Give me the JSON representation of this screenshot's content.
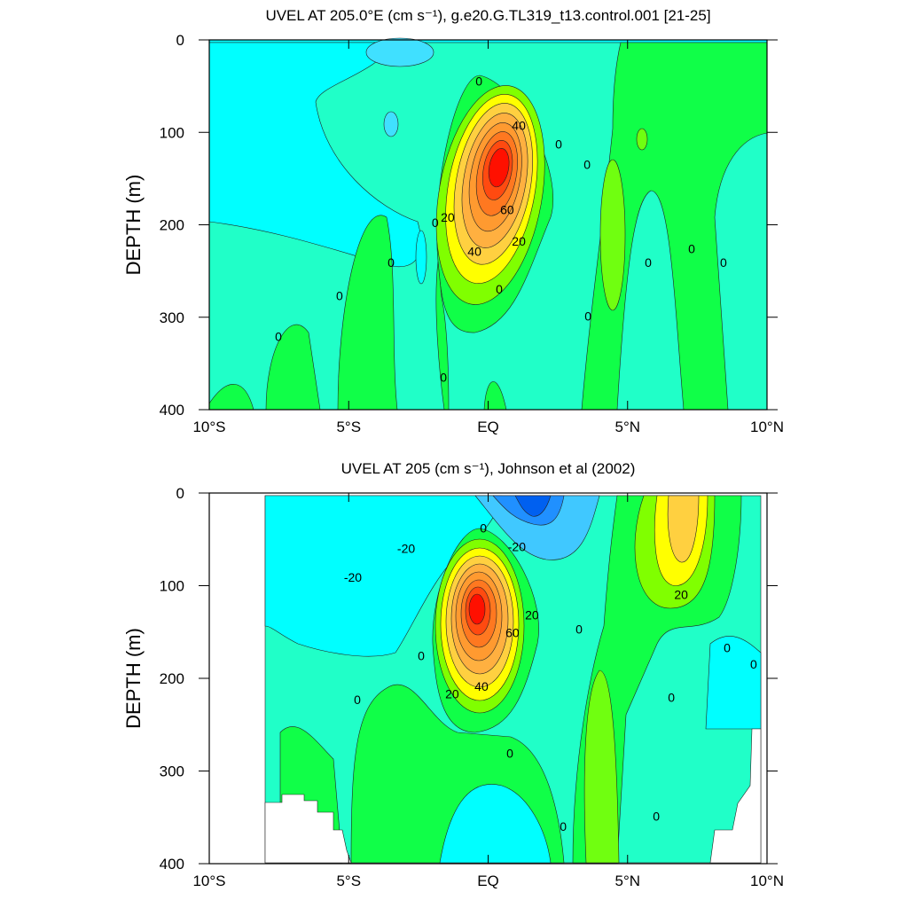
{
  "chart_data": [
    {
      "type": "contour",
      "title": "UVEL AT 205.0°E (cm s⁻¹), g.e20.G.TL319_t13.control.001 [21-25]",
      "ylabel": "DEPTH (m)",
      "xlim": [
        -10,
        10
      ],
      "ylim": [
        0,
        400
      ],
      "y_inverted": true,
      "xticks": [
        {
          "value": -10,
          "label": "10°S"
        },
        {
          "value": -5,
          "label": "5°S"
        },
        {
          "value": 0,
          "label": "EQ"
        },
        {
          "value": 5,
          "label": "5°N"
        },
        {
          "value": 10,
          "label": "10°N"
        }
      ],
      "yticks": [
        0,
        100,
        200,
        300,
        400
      ],
      "contour_labels": [
        {
          "x": -0.33,
          "y": 46,
          "level": 0
        },
        {
          "x": 1.1,
          "y": 94,
          "level": 40
        },
        {
          "x": 2.53,
          "y": 114,
          "level": 0
        },
        {
          "x": 3.55,
          "y": 136,
          "level": 0
        },
        {
          "x": 0.68,
          "y": 185,
          "level": 60
        },
        {
          "x": -1.45,
          "y": 193,
          "level": 20
        },
        {
          "x": -1.9,
          "y": 199,
          "level": 0
        },
        {
          "x": 1.1,
          "y": 219,
          "level": 20
        },
        {
          "x": -0.49,
          "y": 230,
          "level": 40
        },
        {
          "x": -3.48,
          "y": 242,
          "level": 0
        },
        {
          "x": 5.74,
          "y": 242,
          "level": 0
        },
        {
          "x": 7.3,
          "y": 227,
          "level": 0
        },
        {
          "x": 8.44,
          "y": 242,
          "level": 0
        },
        {
          "x": 0.4,
          "y": 271,
          "level": 0
        },
        {
          "x": -5.33,
          "y": 278,
          "level": 0
        },
        {
          "x": 3.58,
          "y": 300,
          "level": 0
        },
        {
          "x": -7.52,
          "y": 322,
          "level": 0
        },
        {
          "x": -1.6,
          "y": 366,
          "level": 0
        }
      ]
    },
    {
      "type": "contour",
      "title": "UVEL AT 205 (cm s⁻¹), Johnson et al (2002)",
      "ylabel": "DEPTH (m)",
      "xlim": [
        -10,
        10
      ],
      "ylim": [
        0,
        400
      ],
      "y_inverted": true,
      "xticks": [
        {
          "value": -10,
          "label": "10°S"
        },
        {
          "value": -5,
          "label": "5°S"
        },
        {
          "value": 0,
          "label": "EQ"
        },
        {
          "value": 5,
          "label": "5°N"
        },
        {
          "value": 10,
          "label": "10°N"
        }
      ],
      "yticks": [
        0,
        100,
        200,
        300,
        400
      ],
      "contour_labels": [
        {
          "x": -0.17,
          "y": 39,
          "level": 0
        },
        {
          "x": -2.94,
          "y": 61,
          "level": -20
        },
        {
          "x": 1.03,
          "y": 59,
          "level": -20
        },
        {
          "x": -4.85,
          "y": 92,
          "level": -20
        },
        {
          "x": 6.92,
          "y": 111,
          "level": 20
        },
        {
          "x": 1.57,
          "y": 133,
          "level": 20
        },
        {
          "x": 0.87,
          "y": 152,
          "level": 60
        },
        {
          "x": 3.26,
          "y": 148,
          "level": 0
        },
        {
          "x": -2.4,
          "y": 177,
          "level": 0
        },
        {
          "x": 8.57,
          "y": 168,
          "level": 0
        },
        {
          "x": 9.52,
          "y": 186,
          "level": 0
        },
        {
          "x": -0.24,
          "y": 210,
          "level": 40
        },
        {
          "x": -1.29,
          "y": 218,
          "level": 20
        },
        {
          "x": -4.69,
          "y": 224,
          "level": 0
        },
        {
          "x": 6.57,
          "y": 222,
          "level": 0
        },
        {
          "x": 0.78,
          "y": 282,
          "level": 0
        },
        {
          "x": 2.69,
          "y": 361,
          "level": 0
        },
        {
          "x": 6.03,
          "y": 350,
          "level": 0
        }
      ]
    }
  ]
}
